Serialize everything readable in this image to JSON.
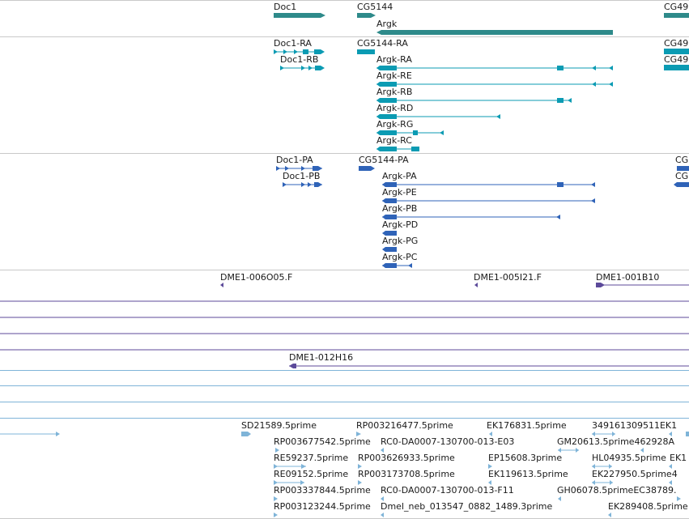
{
  "tracks": {
    "gene_span": {
      "labels": [
        "Doc1",
        "CG5144",
        "CG49",
        "Argk"
      ]
    },
    "transcripts": {
      "labels": [
        "Doc1-RA",
        "CG5144-RA",
        "CG49",
        "Doc1-RB",
        "CG49",
        "Argk-RA",
        "Argk-RE",
        "Argk-RB",
        "Argk-RD",
        "Argk-RG",
        "Argk-RC"
      ],
      "color": "#0b9bb3"
    },
    "proteins": {
      "labels": [
        "Doc1-PA",
        "CG5144-PA",
        "CG",
        "Doc1-PB",
        "CG",
        "Argk-PA",
        "Argk-PE",
        "Argk-PB",
        "Argk-PD",
        "Argk-PG",
        "Argk-PC"
      ],
      "color": "#2f63b8"
    },
    "bac_clones": {
      "labels": [
        "DME1-006O05.F",
        "DME1-005I21.F",
        "DME1-001B10",
        "DME1-012H16"
      ],
      "color": "#5c4a9a"
    },
    "est": {
      "labels": [
        "SD21589.5prime",
        "RP003216477.5prime",
        "EK176831.5prime",
        "349161309511EK1",
        "RP003677542.5prime",
        "RC0-DA0007-130700-013-E03",
        "GM20613.5prime462928A",
        "RE59237.5prime",
        "RP003626933.5prime",
        "EP15608.3prime",
        "HL04935.5prime",
        "EK1",
        "RE09152.5prime",
        "RP003173708.5prime",
        "EK119613.5prime",
        "EK227950.5prime4",
        "RP003337844.5prime",
        "RC0-DA0007-130700-013-F11",
        "GH06078.5primeEC38789.",
        "RP003123244.5prime",
        "Dmel_neb_013547_0882_1489.3prime",
        "EK289408.5prime"
      ],
      "color": "#7fb4d8"
    }
  }
}
